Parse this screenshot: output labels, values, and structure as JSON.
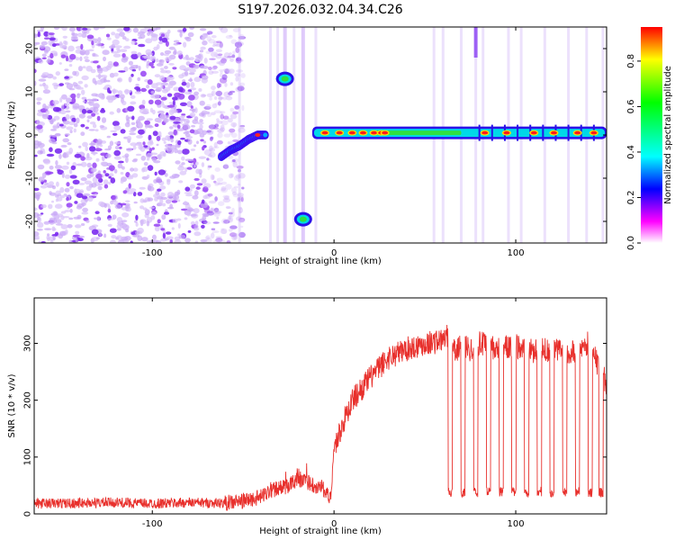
{
  "chart_data": [
    {
      "type": "heatmap",
      "title": "S197.2026.032.04.34.C26",
      "xlabel": "Height of straight line (km)",
      "ylabel": "Frequency (Hz)",
      "xlim": [
        -165,
        150
      ],
      "ylim": [
        -25,
        25
      ],
      "xticks": [
        -100,
        0,
        100
      ],
      "yticks": [
        -20,
        -10,
        0,
        10,
        20
      ],
      "colorbar": {
        "label": "Normalized spectral amplitude",
        "range": [
          0,
          0.95
        ],
        "ticks": [
          0,
          0.2,
          0.4,
          0.6,
          0.8
        ],
        "colors": [
          "#ff0000",
          "#ffff00",
          "#00ff00",
          "#00ffff",
          "#0000ff",
          "#ff00ff",
          "#ffffff"
        ]
      },
      "features": [
        {
          "name": "noise-field",
          "x_range": [
            -165,
            -60
          ],
          "amplitude": 0.1
        },
        {
          "name": "rising-trace",
          "x": [
            -62,
            -57,
            -52,
            -47,
            -42,
            -37
          ],
          "y": [
            -5,
            -3.5,
            -2.5,
            -1,
            0,
            0
          ],
          "amplitude": 0.35
        },
        {
          "name": "upper-spot",
          "x": -27,
          "y": 13,
          "amplitude": 0.5
        },
        {
          "name": "lower-spot",
          "x": -17,
          "y": -19.5,
          "amplitude": 0.5
        },
        {
          "name": "carrier-line",
          "x_range": [
            -12,
            150
          ],
          "y": 0.5,
          "amplitude": 0.3
        },
        {
          "name": "carrier-peaks",
          "x": [
            -5,
            3,
            10,
            16,
            22,
            26,
            28,
            83,
            95,
            110,
            121,
            134,
            143
          ],
          "y": 0.5,
          "amplitude": 0.95
        }
      ]
    },
    {
      "type": "line",
      "xlabel": "Height of straight line (km)",
      "ylabel": "SNR (10 * v/v)",
      "xlim": [
        -165,
        150
      ],
      "ylim": [
        0,
        380
      ],
      "xticks": [
        -100,
        0,
        100
      ],
      "yticks": [
        0,
        100,
        200,
        300
      ],
      "series": [
        {
          "name": "SNR",
          "color": "#e8302c",
          "x": [
            -165,
            -140,
            -120,
            -100,
            -80,
            -60,
            -52,
            -46,
            -40,
            -36,
            -30,
            -25,
            -20,
            -15,
            -10,
            -6,
            -4,
            -2,
            0,
            5,
            10,
            20,
            30,
            40,
            50,
            60,
            64,
            65,
            67,
            70,
            75,
            80,
            90,
            100,
            110,
            120,
            130,
            140,
            150
          ],
          "y": [
            18,
            19,
            20,
            18,
            20,
            19,
            22,
            25,
            30,
            40,
            45,
            50,
            62,
            55,
            50,
            45,
            35,
            25,
            115,
            160,
            200,
            240,
            275,
            290,
            300,
            305,
            320,
            300,
            280,
            300,
            290,
            300,
            290,
            295,
            285,
            290,
            285,
            300,
            230
          ],
          "dropouts_x": [
            64,
            71,
            78,
            85,
            92,
            99,
            106,
            113,
            120,
            127,
            134,
            141,
            147
          ],
          "dropout_floor": 38
        }
      ]
    }
  ]
}
